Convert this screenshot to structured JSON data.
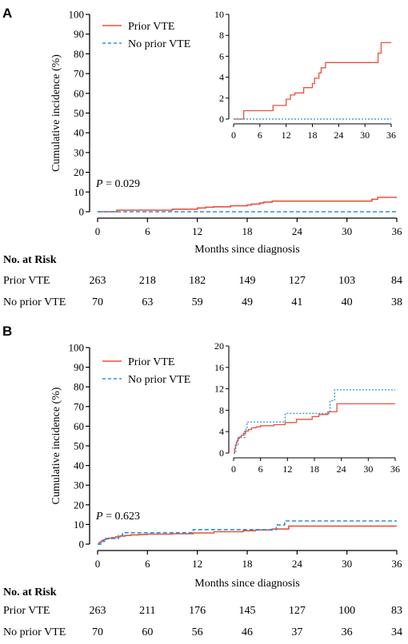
{
  "colors": {
    "prior": "#e8523f",
    "no_prior": "#2a8fd8",
    "axis": "#000000"
  },
  "chart_data": [
    {
      "panel": "A",
      "type": "line",
      "xlabel": "Months since diagnosis",
      "ylabel": "Cumulative incidence (%)",
      "xlim": [
        0,
        36
      ],
      "ylim": [
        0,
        100
      ],
      "xticks": [
        0,
        6,
        12,
        18,
        24,
        30,
        36
      ],
      "yticks": [
        0,
        10,
        20,
        30,
        40,
        50,
        60,
        70,
        80,
        90,
        100
      ],
      "p_prefix": "P",
      "p_value": " = 0.029",
      "legend": {
        "placement": "top-left",
        "entries": [
          "Prior VTE",
          "No prior VTE"
        ]
      },
      "series": [
        {
          "name": "Prior VTE",
          "style": "solid",
          "x": [
            0,
            1.8,
            2.3,
            9,
            12,
            13,
            14,
            16,
            18,
            18.5,
            19.5,
            20,
            21,
            33,
            33.7,
            36
          ],
          "y": [
            0,
            0,
            0.8,
            1.3,
            1.9,
            2.3,
            2.5,
            3.0,
            3.4,
            3.9,
            4.4,
            4.9,
            5.4,
            6.3,
            7.3,
            7.3
          ]
        },
        {
          "name": "No prior VTE",
          "style": "dashed",
          "x": [
            0,
            36
          ],
          "y": [
            0,
            0
          ]
        }
      ],
      "inset": {
        "xlim": [
          0,
          36
        ],
        "ylim": [
          0,
          10
        ],
        "xticks": [
          0,
          6,
          12,
          18,
          24,
          30,
          36
        ],
        "yticks": [
          0,
          2,
          4,
          6,
          8,
          10
        ]
      },
      "risk_table": {
        "title": "No. at Risk",
        "rows": [
          {
            "label": "Prior VTE",
            "values": [
              "263",
              "218",
              "182",
              "149",
              "127",
              "103",
              "84"
            ]
          },
          {
            "label": "No prior VTE",
            "values": [
              "70",
              "63",
              "59",
              "49",
              "41",
              "40",
              "38"
            ]
          }
        ]
      }
    },
    {
      "panel": "B",
      "type": "line",
      "xlabel": "Months since diagnosis",
      "ylabel": "Cumulative incidence (%)",
      "xlim": [
        0,
        36
      ],
      "ylim": [
        0,
        100
      ],
      "xticks": [
        0,
        6,
        12,
        18,
        24,
        30,
        36
      ],
      "yticks": [
        0,
        10,
        20,
        30,
        40,
        50,
        60,
        70,
        80,
        90,
        100
      ],
      "p_prefix": "P",
      "p_value": " = 0.623",
      "legend": {
        "placement": "top-left",
        "entries": [
          "Prior VTE",
          "No prior VTE"
        ]
      },
      "series": [
        {
          "name": "Prior VTE",
          "style": "solid",
          "x": [
            0,
            0.2,
            0.4,
            0.6,
            0.8,
            1.0,
            1.3,
            1.7,
            2.2,
            2.7,
            3.3,
            4.0,
            5.0,
            6.0,
            9.0,
            11.5,
            14.0,
            17.5,
            19.0,
            21.0,
            23.0,
            36
          ],
          "y": [
            0,
            0.8,
            1.5,
            2.0,
            2.4,
            2.7,
            3.0,
            3.3,
            3.7,
            4.1,
            4.4,
            4.7,
            4.9,
            5.1,
            5.3,
            5.7,
            6.3,
            6.8,
            7.2,
            7.7,
            9.2,
            9.2
          ]
        },
        {
          "name": "No prior VTE",
          "style": "dashed",
          "x": [
            0,
            0.5,
            1.0,
            1.8,
            2.5,
            3.0,
            11.5,
            21.5,
            22.5,
            36
          ],
          "y": [
            0,
            1.4,
            2.9,
            2.9,
            4.4,
            5.8,
            7.4,
            9.8,
            11.8,
            11.8
          ]
        }
      ],
      "inset": {
        "xlim": [
          0,
          36
        ],
        "ylim": [
          0,
          20
        ],
        "xticks": [
          0,
          6,
          12,
          18,
          24,
          30,
          36
        ],
        "yticks": [
          0,
          4,
          8,
          12,
          16,
          20
        ]
      },
      "risk_table": {
        "title": "No. at Risk",
        "rows": [
          {
            "label": "Prior VTE",
            "values": [
              "263",
              "211",
              "176",
              "145",
              "127",
              "100",
              "83"
            ]
          },
          {
            "label": "No prior VTE",
            "values": [
              "70",
              "60",
              "56",
              "46",
              "37",
              "36",
              "34"
            ]
          }
        ]
      }
    }
  ]
}
